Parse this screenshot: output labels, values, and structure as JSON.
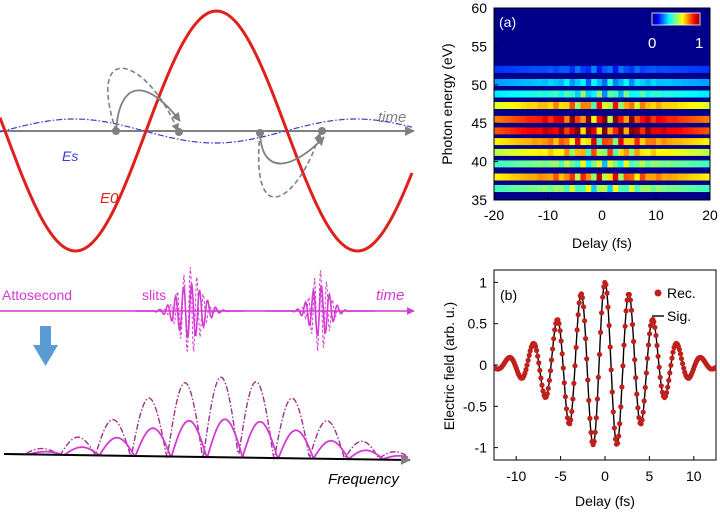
{
  "schematic": {
    "time_label": "time",
    "es_label": "Es",
    "e0_label": "E0",
    "attosecond_label": "Attosecond",
    "slits_label": "slits",
    "time_label_2": "time",
    "frequency_label": "Frequency",
    "colors": {
      "e0": "#e0201c",
      "es": "#3a3acf",
      "axis": "#808080",
      "magenta": "#d43ad4",
      "arrow_blue": "#5b9bd5",
      "black": "#000000"
    }
  },
  "chart_data": [
    {
      "type": "heatmap",
      "panel_label": "(a)",
      "xlabel": "Delay (fs)",
      "ylabel": "Photon energy (eV)",
      "xlim": [
        -20,
        20
      ],
      "ylim": [
        35,
        60
      ],
      "xticks": [
        "-20",
        "-10",
        "0",
        "10",
        "20"
      ],
      "yticks": [
        "35",
        "40",
        "45",
        "50",
        "55",
        "60"
      ],
      "colorbar": {
        "min_label": "0",
        "max_label": "1",
        "colormap": "jet"
      },
      "bands": [
        {
          "energy": 36.5,
          "intensity": 0.55
        },
        {
          "energy": 38.0,
          "intensity": 0.8
        },
        {
          "energy": 39.7,
          "intensity": 0.55
        },
        {
          "energy": 41.2,
          "intensity": 0.7
        },
        {
          "energy": 42.6,
          "intensity": 0.8
        },
        {
          "energy": 44.0,
          "intensity": 1.0
        },
        {
          "energy": 45.5,
          "intensity": 0.95
        },
        {
          "energy": 47.3,
          "intensity": 0.75
        },
        {
          "energy": 48.8,
          "intensity": 0.45
        },
        {
          "energy": 50.3,
          "intensity": 0.35
        },
        {
          "energy": 52.0,
          "intensity": 0.22
        }
      ]
    },
    {
      "type": "line",
      "panel_label": "(b)",
      "xlabel": "Delay (fs)",
      "ylabel": "Electric field (arb. u.)",
      "xlim": [
        -12.5,
        12.5
      ],
      "ylim": [
        -1.15,
        1.15
      ],
      "xticks": [
        "-10",
        "-5",
        "0",
        "5",
        "10"
      ],
      "yticks": [
        "-1",
        "-0.5",
        "0",
        "0.5",
        "1"
      ],
      "field_model": {
        "carrier_period_fs": 2.7,
        "envelope_fwhm_fs": 5.8,
        "amplitude": 1.0
      },
      "series": [
        {
          "name": "Rec.",
          "style": "dots",
          "color": "#c0201c"
        },
        {
          "name": "Sig.",
          "style": "line",
          "color": "#000000"
        }
      ]
    }
  ]
}
